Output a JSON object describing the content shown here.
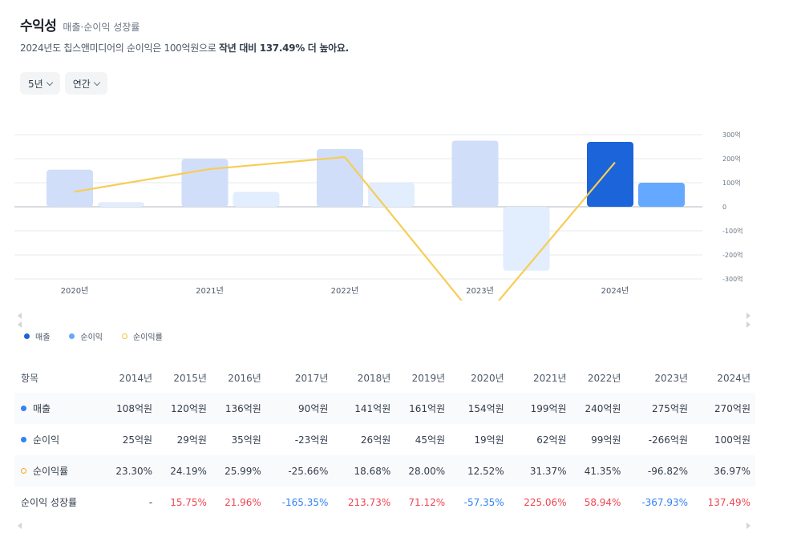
{
  "header": {
    "title": "수익성",
    "subtitle": "매출·순이익 성장률",
    "summary_prefix": "2024년도 칩스앤미디어의 순이익은 100억원으로 ",
    "summary_bold": "작년 대비 137.49% 더 높아요."
  },
  "filters": {
    "period": "5년",
    "frequency": "연간"
  },
  "colors": {
    "revenue_highlight": "#1b64da",
    "revenue": "#d0defa",
    "profit_highlight": "#64a8ff",
    "profit": "#e2edfe",
    "rate_line": "#f7cd57",
    "positive": "#f04452",
    "negative": "#3182f6"
  },
  "chart_data": {
    "type": "bar",
    "categories": [
      "2020년",
      "2021년",
      "2022년",
      "2023년",
      "2024년"
    ],
    "series": [
      {
        "name": "매출",
        "values": [
          154,
          199,
          240,
          275,
          270
        ]
      },
      {
        "name": "순이익",
        "values": [
          19,
          62,
          99,
          -266,
          100
        ]
      },
      {
        "name": "순이익률",
        "type": "line",
        "values": [
          12.52,
          31.37,
          41.35,
          -96.82,
          36.97
        ]
      }
    ],
    "left_axis": {
      "min": -300,
      "max": 300,
      "step": 100,
      "unit": "억"
    },
    "right_axis_ticks": [
      "300억",
      "200억",
      "100억",
      "0",
      "-100억",
      "-200억",
      "-300억"
    ],
    "rate_axis": {
      "min": -100,
      "max": 100
    },
    "highlight_index": 4
  },
  "legend": [
    "매출",
    "순이익",
    "순이익률"
  ],
  "table": {
    "header_label": "항목",
    "years": [
      "2014년",
      "2015년",
      "2016년",
      "2017년",
      "2018년",
      "2019년",
      "2020년",
      "2021년",
      "2022년",
      "2023년",
      "2024년"
    ],
    "rows": [
      {
        "label": "매출",
        "marker": "dot",
        "values": [
          "108억원",
          "120억원",
          "136억원",
          "90억원",
          "141억원",
          "161억원",
          "154억원",
          "199억원",
          "240억원",
          "275억원",
          "270억원"
        ]
      },
      {
        "label": "순이익",
        "marker": "dot",
        "values": [
          "25억원",
          "29억원",
          "35억원",
          "-23억원",
          "26억원",
          "45억원",
          "19억원",
          "62억원",
          "99억원",
          "-266억원",
          "100억원"
        ]
      },
      {
        "label": "순이익률",
        "marker": "ring",
        "values": [
          "23.30%",
          "24.19%",
          "25.99%",
          "-25.66%",
          "18.68%",
          "28.00%",
          "12.52%",
          "31.37%",
          "41.35%",
          "-96.82%",
          "36.97%"
        ]
      },
      {
        "label": "순이익 성장률",
        "marker": "none",
        "values": [
          "-",
          "15.75%",
          "21.96%",
          "-165.35%",
          "213.73%",
          "71.12%",
          "-57.35%",
          "225.06%",
          "58.94%",
          "-367.93%",
          "137.49%"
        ]
      }
    ]
  }
}
